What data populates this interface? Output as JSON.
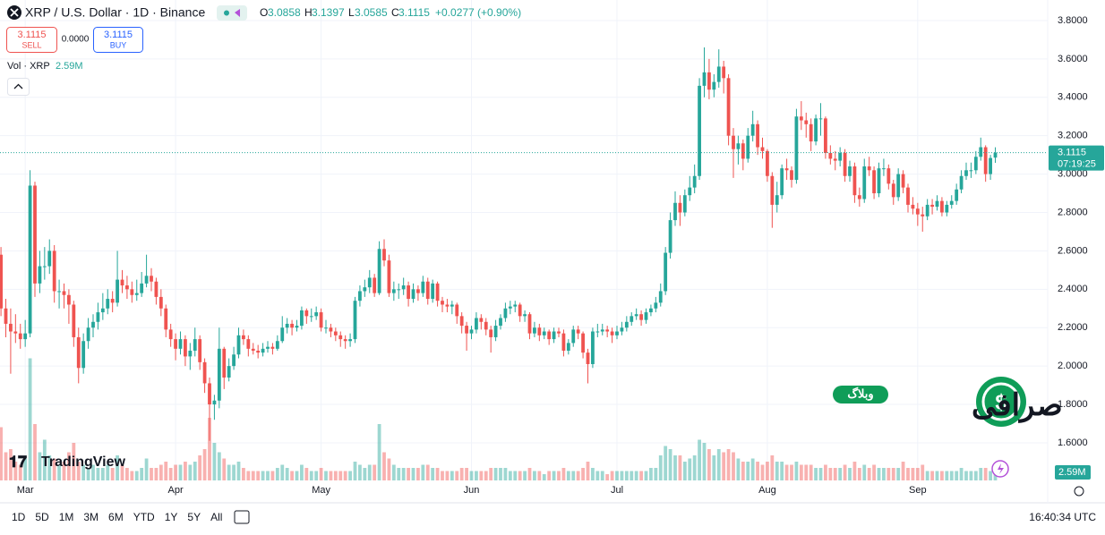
{
  "header": {
    "symbol": "XRP / U.S. Dollar · 1D · Binance",
    "open_key": "O",
    "high_key": "H",
    "low_key": "L",
    "close_key": "C",
    "change": "+0.0277 (+0.90%)",
    "sell_label": "SELL",
    "buy_label": "BUY",
    "spread": "0.0000",
    "volume_title": "Vol · XRP",
    "volume_value": "2.59M",
    "countdown": "07:19:25"
  },
  "toolbar": {
    "timeframes": [
      "1D",
      "5D",
      "1M",
      "3M",
      "6M",
      "YTD",
      "1Y",
      "5Y",
      "All"
    ],
    "clock": "16:40:34 UTC"
  },
  "branding": {
    "logo": "TradingView",
    "watermark": "صرافی",
    "watermark_badge": "وبلاگ"
  },
  "chart_data": {
    "type": "candlestick",
    "grid": true,
    "colors": {
      "up": "#26a69a",
      "down": "#ef5350"
    },
    "xlim": [
      -0.2,
      215.8
    ],
    "ylim": [
      1.404,
      3.907
    ],
    "vlim": [
      0,
      42
    ],
    "xticks": [
      {
        "value": 5,
        "label": "Mar"
      },
      {
        "value": 36,
        "label": "Apr"
      },
      {
        "value": 66,
        "label": "May"
      },
      {
        "value": 97,
        "label": "Jun"
      },
      {
        "value": 127,
        "label": "Jul"
      },
      {
        "value": 158,
        "label": "Aug"
      },
      {
        "value": 189,
        "label": "Sep"
      }
    ],
    "yticks": [
      {
        "value": 1.6,
        "label": "1.6000"
      },
      {
        "value": 1.8,
        "label": "1.8000"
      },
      {
        "value": 2,
        "label": "2.0000"
      },
      {
        "value": 2.2,
        "label": "2.2000"
      },
      {
        "value": 2.4,
        "label": "2.4000"
      },
      {
        "value": 2.6,
        "label": "2.6000"
      },
      {
        "value": 2.8,
        "label": "2.8000"
      },
      {
        "value": 3,
        "label": "3.0000"
      },
      {
        "value": 3.2,
        "label": "3.2000"
      },
      {
        "value": 3.4,
        "label": "3.4000"
      },
      {
        "value": 3.6,
        "label": "3.6000"
      },
      {
        "value": 3.8,
        "label": "3.8000"
      }
    ],
    "ohlc": [
      [
        2.58,
        2.62,
        2.26,
        2.3
      ],
      [
        2.3,
        2.35,
        2.15,
        2.22
      ],
      [
        2.22,
        2.3,
        1.96,
        2.18
      ],
      [
        2.18,
        2.27,
        2.12,
        2.17
      ],
      [
        2.17,
        2.22,
        2.09,
        2.14
      ],
      [
        2.14,
        2.24,
        2.1,
        2.17
      ],
      [
        2.17,
        3.02,
        2.15,
        2.94
      ],
      [
        2.94,
        2.96,
        2.36,
        2.43
      ],
      [
        2.43,
        2.6,
        2.38,
        2.52
      ],
      [
        2.52,
        2.62,
        2.45,
        2.52
      ],
      [
        2.52,
        2.66,
        2.48,
        2.6
      ],
      [
        2.6,
        2.63,
        2.33,
        2.39
      ],
      [
        2.39,
        2.45,
        2.3,
        2.39
      ],
      [
        2.39,
        2.43,
        2.3,
        2.37
      ],
      [
        2.37,
        2.4,
        2.22,
        2.32
      ],
      [
        2.32,
        2.34,
        2.1,
        2.15
      ],
      [
        2.15,
        2.2,
        1.91,
        1.99
      ],
      [
        1.99,
        2.17,
        1.96,
        2.13
      ],
      [
        2.13,
        2.25,
        2.09,
        2.2
      ],
      [
        2.2,
        2.27,
        2.15,
        2.23
      ],
      [
        2.23,
        2.33,
        2.19,
        2.28
      ],
      [
        2.28,
        2.38,
        2.24,
        2.3
      ],
      [
        2.3,
        2.4,
        2.27,
        2.35
      ],
      [
        2.35,
        2.39,
        2.28,
        2.33
      ],
      [
        2.33,
        2.6,
        2.31,
        2.45
      ],
      [
        2.45,
        2.5,
        2.38,
        2.42
      ],
      [
        2.42,
        2.47,
        2.35,
        2.4
      ],
      [
        2.4,
        2.44,
        2.33,
        2.37
      ],
      [
        2.37,
        2.45,
        2.34,
        2.38
      ],
      [
        2.38,
        2.49,
        2.36,
        2.43
      ],
      [
        2.43,
        2.58,
        2.41,
        2.47
      ],
      [
        2.47,
        2.51,
        2.39,
        2.44
      ],
      [
        2.44,
        2.46,
        2.32,
        2.36
      ],
      [
        2.36,
        2.4,
        2.26,
        2.3
      ],
      [
        2.3,
        2.32,
        2.15,
        2.19
      ],
      [
        2.19,
        2.22,
        2.1,
        2.14
      ],
      [
        2.14,
        2.17,
        2.03,
        2.09
      ],
      [
        2.09,
        2.18,
        2.06,
        2.14
      ],
      [
        2.14,
        2.16,
        2.0,
        2.05
      ],
      [
        2.05,
        2.12,
        1.98,
        2.08
      ],
      [
        2.08,
        2.2,
        2.05,
        2.14
      ],
      [
        2.14,
        2.16,
        1.98,
        2.02
      ],
      [
        2.02,
        2.04,
        1.86,
        1.91
      ],
      [
        1.91,
        1.94,
        1.61,
        1.8
      ],
      [
        1.8,
        1.85,
        1.72,
        1.82
      ],
      [
        1.82,
        2.2,
        1.78,
        2.09
      ],
      [
        2.09,
        2.1,
        1.88,
        1.94
      ],
      [
        1.94,
        2.04,
        1.92,
        2.0
      ],
      [
        2.0,
        2.1,
        1.98,
        2.06
      ],
      [
        2.06,
        2.2,
        2.04,
        2.16
      ],
      [
        2.16,
        2.19,
        2.11,
        2.14
      ],
      [
        2.14,
        2.16,
        2.05,
        2.09
      ],
      [
        2.09,
        2.12,
        2.06,
        2.08
      ],
      [
        2.08,
        2.11,
        2.04,
        2.07
      ],
      [
        2.07,
        2.12,
        2.05,
        2.09
      ],
      [
        2.09,
        2.13,
        2.07,
        2.1
      ],
      [
        2.1,
        2.12,
        2.06,
        2.09
      ],
      [
        2.09,
        2.16,
        2.08,
        2.13
      ],
      [
        2.13,
        2.26,
        2.12,
        2.2
      ],
      [
        2.2,
        2.25,
        2.17,
        2.22
      ],
      [
        2.22,
        2.24,
        2.16,
        2.2
      ],
      [
        2.2,
        2.24,
        2.18,
        2.21
      ],
      [
        2.21,
        2.31,
        2.19,
        2.29
      ],
      [
        2.29,
        2.3,
        2.22,
        2.26
      ],
      [
        2.26,
        2.3,
        2.23,
        2.26
      ],
      [
        2.26,
        2.31,
        2.24,
        2.28
      ],
      [
        2.28,
        2.3,
        2.18,
        2.2
      ],
      [
        2.2,
        2.24,
        2.17,
        2.2
      ],
      [
        2.2,
        2.22,
        2.15,
        2.18
      ],
      [
        2.18,
        2.2,
        2.13,
        2.16
      ],
      [
        2.16,
        2.18,
        2.1,
        2.14
      ],
      [
        2.14,
        2.16,
        2.09,
        2.13
      ],
      [
        2.13,
        2.17,
        2.1,
        2.14
      ],
      [
        2.14,
        2.36,
        2.12,
        2.34
      ],
      [
        2.34,
        2.42,
        2.31,
        2.39
      ],
      [
        2.39,
        2.45,
        2.36,
        2.41
      ],
      [
        2.41,
        2.5,
        2.38,
        2.46
      ],
      [
        2.46,
        2.48,
        2.36,
        2.38
      ],
      [
        2.38,
        2.65,
        2.37,
        2.61
      ],
      [
        2.61,
        2.66,
        2.52,
        2.55
      ],
      [
        2.55,
        2.58,
        2.36,
        2.38
      ],
      [
        2.38,
        2.44,
        2.34,
        2.4
      ],
      [
        2.4,
        2.43,
        2.35,
        2.4
      ],
      [
        2.4,
        2.46,
        2.37,
        2.42
      ],
      [
        2.42,
        2.44,
        2.31,
        2.35
      ],
      [
        2.35,
        2.43,
        2.33,
        2.4
      ],
      [
        2.4,
        2.42,
        2.34,
        2.38
      ],
      [
        2.38,
        2.47,
        2.36,
        2.44
      ],
      [
        2.44,
        2.46,
        2.32,
        2.35
      ],
      [
        2.35,
        2.45,
        2.33,
        2.43
      ],
      [
        2.43,
        2.44,
        2.31,
        2.34
      ],
      [
        2.34,
        2.36,
        2.28,
        2.32
      ],
      [
        2.32,
        2.35,
        2.28,
        2.31
      ],
      [
        2.31,
        2.34,
        2.27,
        2.32
      ],
      [
        2.32,
        2.33,
        2.22,
        2.26
      ],
      [
        2.26,
        2.28,
        2.17,
        2.21
      ],
      [
        2.21,
        2.23,
        2.08,
        2.17
      ],
      [
        2.17,
        2.21,
        2.14,
        2.19
      ],
      [
        2.19,
        2.28,
        2.17,
        2.25
      ],
      [
        2.25,
        2.27,
        2.19,
        2.23
      ],
      [
        2.23,
        2.25,
        2.16,
        2.19
      ],
      [
        2.19,
        2.21,
        2.07,
        2.15
      ],
      [
        2.15,
        2.24,
        2.13,
        2.21
      ],
      [
        2.21,
        2.27,
        2.19,
        2.25
      ],
      [
        2.25,
        2.33,
        2.23,
        2.3
      ],
      [
        2.3,
        2.34,
        2.27,
        2.31
      ],
      [
        2.31,
        2.34,
        2.28,
        2.32
      ],
      [
        2.32,
        2.33,
        2.23,
        2.26
      ],
      [
        2.26,
        2.29,
        2.23,
        2.27
      ],
      [
        2.27,
        2.28,
        2.14,
        2.17
      ],
      [
        2.17,
        2.23,
        2.15,
        2.2
      ],
      [
        2.2,
        2.22,
        2.13,
        2.16
      ],
      [
        2.16,
        2.2,
        2.14,
        2.18
      ],
      [
        2.18,
        2.19,
        2.11,
        2.14
      ],
      [
        2.14,
        2.2,
        2.12,
        2.18
      ],
      [
        2.18,
        2.2,
        2.15,
        2.17
      ],
      [
        2.17,
        2.19,
        2.05,
        2.08
      ],
      [
        2.08,
        2.14,
        2.06,
        2.12
      ],
      [
        2.12,
        2.21,
        2.1,
        2.19
      ],
      [
        2.19,
        2.21,
        2.14,
        2.17
      ],
      [
        2.17,
        2.18,
        2.04,
        2.07
      ],
      [
        2.07,
        2.09,
        1.91,
        2.01
      ],
      [
        2.01,
        2.2,
        1.99,
        2.18
      ],
      [
        2.18,
        2.22,
        2.15,
        2.18
      ],
      [
        2.18,
        2.22,
        2.16,
        2.19
      ],
      [
        2.19,
        2.21,
        2.15,
        2.18
      ],
      [
        2.18,
        2.2,
        2.12,
        2.16
      ],
      [
        2.16,
        2.21,
        2.14,
        2.18
      ],
      [
        2.18,
        2.23,
        2.16,
        2.2
      ],
      [
        2.2,
        2.26,
        2.18,
        2.23
      ],
      [
        2.23,
        2.28,
        2.21,
        2.26
      ],
      [
        2.26,
        2.3,
        2.24,
        2.27
      ],
      [
        2.27,
        2.29,
        2.21,
        2.24
      ],
      [
        2.24,
        2.3,
        2.22,
        2.28
      ],
      [
        2.28,
        2.32,
        2.26,
        2.3
      ],
      [
        2.3,
        2.36,
        2.28,
        2.33
      ],
      [
        2.33,
        2.43,
        2.31,
        2.39
      ],
      [
        2.39,
        2.62,
        2.37,
        2.59
      ],
      [
        2.59,
        2.8,
        2.56,
        2.76
      ],
      [
        2.76,
        2.91,
        2.73,
        2.85
      ],
      [
        2.85,
        2.89,
        2.73,
        2.8
      ],
      [
        2.8,
        2.92,
        2.78,
        2.89
      ],
      [
        2.89,
        2.99,
        2.86,
        2.93
      ],
      [
        2.93,
        3.05,
        2.9,
        2.99
      ],
      [
        2.99,
        3.5,
        2.97,
        3.46
      ],
      [
        3.46,
        3.66,
        3.4,
        3.53
      ],
      [
        3.53,
        3.6,
        3.39,
        3.44
      ],
      [
        3.44,
        3.52,
        3.4,
        3.48
      ],
      [
        3.48,
        3.65,
        3.45,
        3.56
      ],
      [
        3.56,
        3.59,
        3.42,
        3.5
      ],
      [
        3.5,
        3.52,
        3.15,
        3.2
      ],
      [
        3.2,
        3.24,
        2.98,
        3.13
      ],
      [
        3.13,
        3.2,
        3.05,
        3.16
      ],
      [
        3.16,
        3.18,
        3.02,
        3.08
      ],
      [
        3.08,
        3.24,
        3.06,
        3.2
      ],
      [
        3.2,
        3.33,
        3.17,
        3.26
      ],
      [
        3.26,
        3.28,
        3.1,
        3.14
      ],
      [
        3.14,
        3.19,
        3.08,
        3.12
      ],
      [
        3.12,
        3.13,
        2.96,
        2.99
      ],
      [
        2.99,
        3.01,
        2.72,
        2.84
      ],
      [
        2.84,
        2.96,
        2.8,
        2.89
      ],
      [
        2.89,
        3.05,
        2.87,
        3.03
      ],
      [
        3.03,
        3.08,
        2.97,
        3.02
      ],
      [
        3.02,
        3.04,
        2.93,
        2.97
      ],
      [
        2.97,
        3.34,
        2.95,
        3.3
      ],
      [
        3.3,
        3.38,
        3.23,
        3.28
      ],
      [
        3.28,
        3.32,
        3.19,
        3.26
      ],
      [
        3.26,
        3.29,
        3.12,
        3.17
      ],
      [
        3.17,
        3.31,
        3.15,
        3.29
      ],
      [
        3.29,
        3.37,
        3.2,
        3.29
      ],
      [
        3.29,
        3.3,
        3.08,
        3.11
      ],
      [
        3.11,
        3.15,
        3.05,
        3.08
      ],
      [
        3.08,
        3.12,
        3.02,
        3.07
      ],
      [
        3.07,
        3.14,
        3.04,
        3.11
      ],
      [
        3.11,
        3.13,
        2.96,
        2.99
      ],
      [
        2.99,
        3.07,
        2.96,
        3.04
      ],
      [
        3.04,
        3.06,
        2.85,
        2.89
      ],
      [
        2.89,
        2.93,
        2.83,
        2.87
      ],
      [
        2.87,
        3.08,
        2.85,
        3.04
      ],
      [
        3.04,
        3.09,
        2.99,
        3.02
      ],
      [
        3.02,
        3.04,
        2.87,
        2.9
      ],
      [
        2.9,
        3.06,
        2.88,
        3.03
      ],
      [
        3.03,
        3.08,
        2.99,
        3.03
      ],
      [
        3.03,
        3.05,
        2.92,
        2.95
      ],
      [
        2.95,
        2.97,
        2.84,
        2.88
      ],
      [
        2.88,
        3.03,
        2.86,
        3.0
      ],
      [
        3.0,
        3.02,
        2.9,
        2.93
      ],
      [
        2.93,
        2.95,
        2.8,
        2.84
      ],
      [
        2.84,
        2.88,
        2.79,
        2.82
      ],
      [
        2.82,
        2.85,
        2.73,
        2.79
      ],
      [
        2.79,
        2.83,
        2.7,
        2.78
      ],
      [
        2.78,
        2.87,
        2.76,
        2.84
      ],
      [
        2.84,
        2.87,
        2.79,
        2.83
      ],
      [
        2.83,
        2.89,
        2.81,
        2.86
      ],
      [
        2.86,
        2.88,
        2.78,
        2.8
      ],
      [
        2.8,
        2.86,
        2.78,
        2.84
      ],
      [
        2.84,
        2.89,
        2.82,
        2.86
      ],
      [
        2.86,
        2.95,
        2.84,
        2.92
      ],
      [
        2.92,
        3.02,
        2.9,
        2.99
      ],
      [
        2.99,
        3.06,
        2.97,
        3.02
      ],
      [
        3.02,
        3.06,
        2.98,
        3.02
      ],
      [
        3.02,
        3.12,
        3.0,
        3.09
      ],
      [
        3.09,
        3.19,
        3.07,
        3.14
      ],
      [
        3.14,
        3.15,
        2.96,
        3.0
      ],
      [
        3.0,
        3.1,
        2.97,
        3.0838
      ],
      [
        3.0858,
        3.1397,
        3.0585,
        3.1115
      ]
    ],
    "volume": [
      17,
      9,
      10,
      6,
      5,
      7,
      39,
      18,
      9,
      13,
      8,
      7,
      5,
      6,
      9,
      12,
      6,
      5,
      4,
      5,
      4,
      4,
      5,
      4,
      8,
      5,
      4,
      3,
      3,
      4,
      7,
      4,
      4,
      5,
      6,
      4,
      5,
      5,
      6,
      5,
      6,
      8,
      10,
      20,
      12,
      9,
      7,
      5,
      5,
      6,
      4,
      3,
      3,
      3,
      3,
      3,
      3,
      4,
      5,
      4,
      3,
      3,
      5,
      4,
      3,
      3,
      4,
      3,
      3,
      3,
      3,
      3,
      3,
      6,
      5,
      4,
      5,
      5,
      18,
      9,
      7,
      5,
      4,
      4,
      4,
      4,
      4,
      5,
      5,
      4,
      4,
      3,
      3,
      3,
      3,
      4,
      4,
      3,
      3,
      3,
      3,
      4,
      4,
      4,
      4,
      3,
      3,
      3,
      3,
      4,
      3,
      3,
      2,
      3,
      3,
      3,
      4,
      3,
      3,
      3,
      4,
      6,
      4,
      3,
      3,
      2,
      3,
      3,
      3,
      3,
      3,
      3,
      3,
      3,
      4,
      4,
      8,
      11,
      10,
      8,
      8,
      6,
      7,
      8,
      13,
      12,
      10,
      8,
      10,
      9,
      10,
      9,
      7,
      6,
      6,
      7,
      6,
      5,
      6,
      8,
      6,
      6,
      5,
      5,
      6,
      5,
      5,
      5,
      4,
      4,
      5,
      4,
      4,
      4,
      5,
      4,
      6,
      4,
      5,
      4,
      5,
      4,
      4,
      4,
      4,
      4,
      6,
      4,
      4,
      4,
      5,
      3,
      3,
      3,
      3,
      3,
      3,
      3,
      4,
      3,
      3,
      3,
      4,
      4,
      3,
      2.59
    ]
  }
}
